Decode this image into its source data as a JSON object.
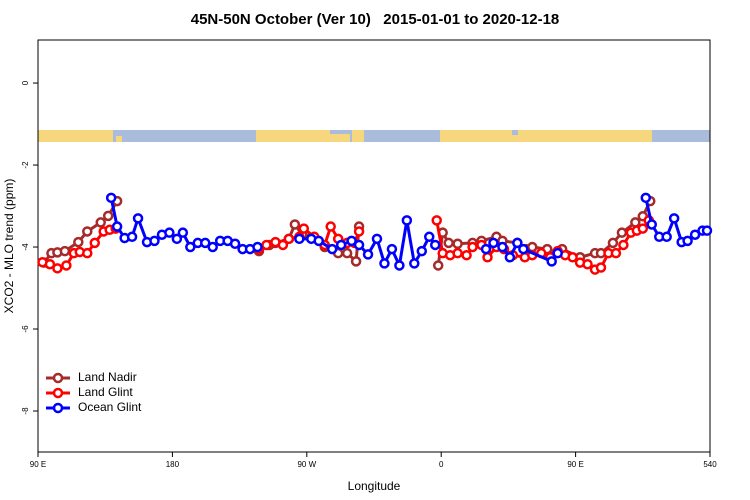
{
  "chart_data": {
    "type": "line",
    "title": "45N-50N October (Ver 10)   2015-01-01 to 2020-12-18",
    "xlabel": "Longitude",
    "ylabel": "XCO2 - MLO trend (ppm)",
    "xlim": [
      90,
      540
    ],
    "ylim": [
      -9,
      1.05
    ],
    "xticks": [
      {
        "value": 90,
        "label": "90 E"
      },
      180,
      {
        "value": 270,
        "label": "90 W"
      },
      {
        "value": 360,
        "label": "0"
      },
      {
        "value": 450,
        "label": "90 E"
      },
      540
    ],
    "yticks": [
      0,
      -2,
      -4,
      -6,
      -8
    ],
    "legend": "bottomleft",
    "series": [
      {
        "name": "Land Nadir",
        "color": "#a52a2a",
        "x": [
          94,
          99,
          103,
          108,
          117,
          123,
          132,
          137,
          143,
          null,
          238,
          245,
          249,
          258,
          262,
          267,
          273,
          282,
          291,
          297,
          303,
          305,
          null,
          358,
          361,
          365,
          371,
          381,
          387,
          397,
          401,
          411,
          417,
          421,
          431,
          437,
          441,
          453,
          463,
          467,
          475,
          481,
          490,
          495,
          500
        ],
        "values": [
          -4.38,
          -4.15,
          -4.13,
          -4.1,
          -3.88,
          -3.62,
          -3.4,
          -3.24,
          -2.88,
          null,
          -4.1,
          -3.95,
          -3.9,
          -3.8,
          -3.45,
          -3.7,
          -3.78,
          -4.0,
          -4.15,
          -4.15,
          -4.35,
          -3.5,
          null,
          -4.45,
          -3.65,
          -3.9,
          -3.92,
          -3.9,
          -3.85,
          -3.75,
          -3.85,
          -3.9,
          -4.05,
          -4.0,
          -4.05,
          -4.15,
          -4.05,
          -4.25,
          -4.15,
          -4.15,
          -3.9,
          -3.65,
          -3.4,
          -3.25,
          -2.88
        ]
      },
      {
        "name": "Land Glint",
        "color": "#ff0000",
        "x": [
          93,
          98,
          103,
          109,
          114,
          118,
          123,
          128,
          134,
          138,
          142,
          null,
          238,
          243,
          249,
          254,
          258,
          265,
          268,
          275,
          282,
          286,
          291,
          297,
          302,
          305,
          null,
          357,
          361,
          366,
          371,
          377,
          381,
          387,
          391,
          397,
          402,
          408,
          416,
          421,
          427,
          433,
          438,
          443,
          448,
          453,
          458,
          463,
          467,
          472,
          477,
          482,
          487,
          491,
          495,
          499
        ],
        "values": [
          -4.37,
          -4.42,
          -4.52,
          -4.45,
          -4.15,
          -4.12,
          -4.15,
          -3.9,
          -3.62,
          -3.58,
          -3.55,
          null,
          -4.05,
          -3.95,
          -3.88,
          -3.95,
          -3.8,
          -3.75,
          -3.55,
          -3.75,
          -3.95,
          -3.5,
          -3.8,
          -3.9,
          -3.9,
          -3.62,
          null,
          -3.35,
          -4.15,
          -4.2,
          -4.15,
          -4.2,
          -4.0,
          -3.95,
          -4.25,
          -4.0,
          -4.05,
          -4.2,
          -4.25,
          -4.2,
          -4.15,
          -4.25,
          -4.1,
          -4.2,
          -4.25,
          -4.38,
          -4.42,
          -4.55,
          -4.5,
          -4.15,
          -4.15,
          -3.95,
          -3.65,
          -3.6,
          -3.55,
          -3.35
        ]
      },
      {
        "name": "Ocean Glint",
        "color": "#0000ff",
        "x": [
          139,
          143,
          148,
          153,
          157,
          163,
          168,
          173,
          178,
          183,
          187,
          192,
          197,
          202,
          207,
          212,
          217,
          222,
          227,
          232,
          237,
          null,
          265,
          273,
          278,
          287,
          293,
          300,
          305,
          311,
          317,
          322,
          327,
          332,
          337,
          342,
          347,
          352,
          356,
          null,
          390,
          395,
          401,
          406,
          411,
          415,
          434,
          438,
          null,
          497,
          501,
          506,
          511,
          516,
          521,
          525,
          530,
          535,
          538
        ],
        "values": [
          -2.8,
          -3.5,
          -3.78,
          -3.75,
          -3.3,
          -3.88,
          -3.85,
          -3.7,
          -3.65,
          -3.8,
          -3.65,
          -4.0,
          -3.9,
          -3.9,
          -4.0,
          -3.85,
          -3.85,
          -3.92,
          -4.05,
          -4.05,
          -4.0,
          null,
          -3.8,
          -3.8,
          -3.85,
          -4.05,
          -3.95,
          -3.85,
          -3.95,
          -4.18,
          -3.8,
          -4.4,
          -4.05,
          -4.45,
          -3.35,
          -4.4,
          -4.1,
          -3.75,
          -3.95,
          null,
          -4.05,
          -3.9,
          -4.0,
          -4.25,
          -3.9,
          -4.05,
          -4.35,
          -4.15,
          null,
          -2.8,
          -3.45,
          -3.75,
          -3.75,
          -3.3,
          -3.88,
          -3.85,
          -3.7,
          -3.6,
          -3.6
        ]
      }
    ]
  }
}
